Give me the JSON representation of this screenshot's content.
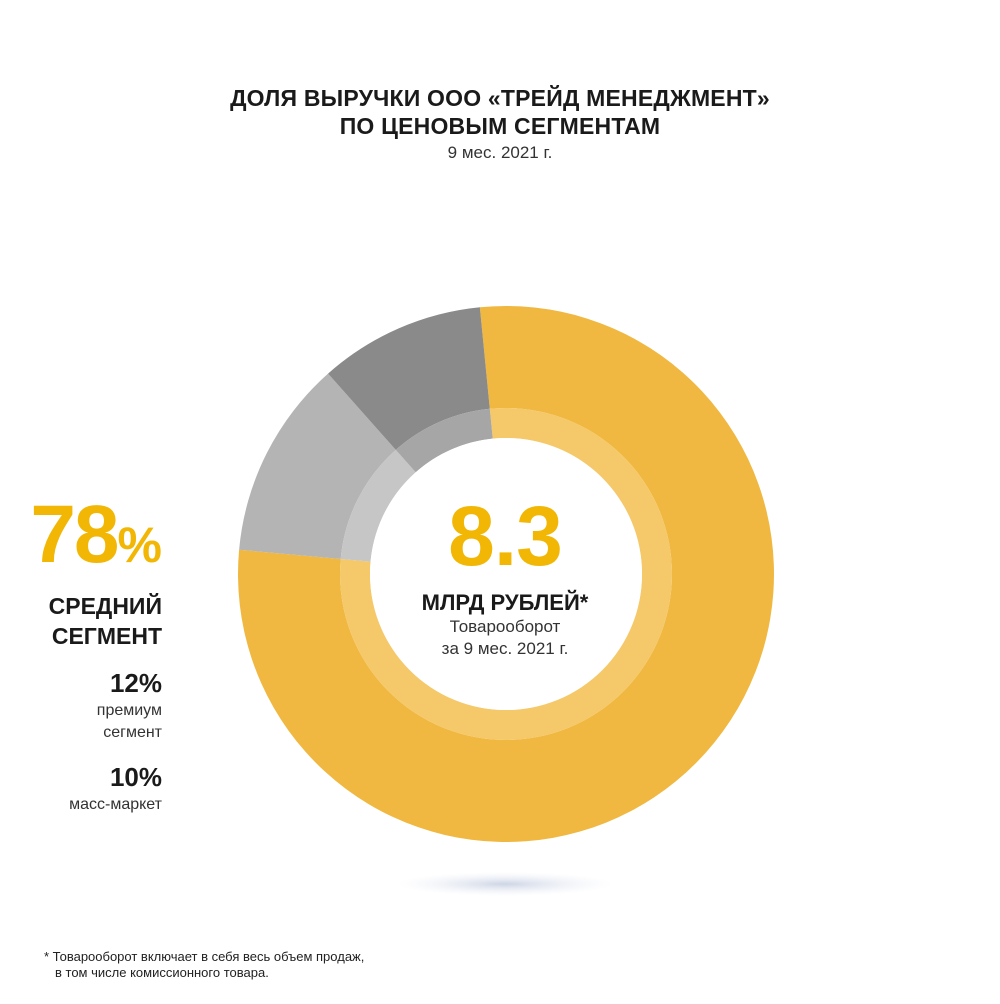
{
  "header": {
    "title_line1": "ДОЛЯ ВЫРУЧКИ ООО «ТРЕЙД МЕНЕДЖМЕНТ»",
    "title_line2": "ПО ЦЕНОВЫМ СЕГМЕНТАМ",
    "period": "9 мес. 2021 г."
  },
  "center": {
    "value": "8.3",
    "unit": "МЛРД РУБЛЕЙ*",
    "desc_line1": "Товарооборот",
    "desc_line2": "за 9 мес. 2021 г."
  },
  "legend": {
    "main": {
      "pct_num": "78",
      "pct_sym": "%",
      "label_line1": "СРЕДНИЙ",
      "label_line2": "СЕГМЕНТ"
    },
    "premium": {
      "pct": "12%",
      "label_line1": "премиум",
      "label_line2": "сегмент"
    },
    "mass": {
      "pct": "10%",
      "label_line1": "масс-маркет"
    }
  },
  "footnote": {
    "line1": "* Товарооборот включает в себя весь объем продаж,",
    "line2": "в том числе комиссионного товара."
  },
  "chart_data": {
    "type": "pie",
    "categories": [
      "средний сегмент",
      "премиум сегмент",
      "масс-маркет"
    ],
    "values": [
      78,
      12,
      10
    ],
    "unit": "%",
    "center_value": 8.3,
    "colors": [
      "#f0b840",
      "#b4b4b4",
      "#8a8a8a"
    ],
    "inner_colors": [
      "#f5c969",
      "#c6c6c6",
      "#a6a6a6"
    ]
  }
}
